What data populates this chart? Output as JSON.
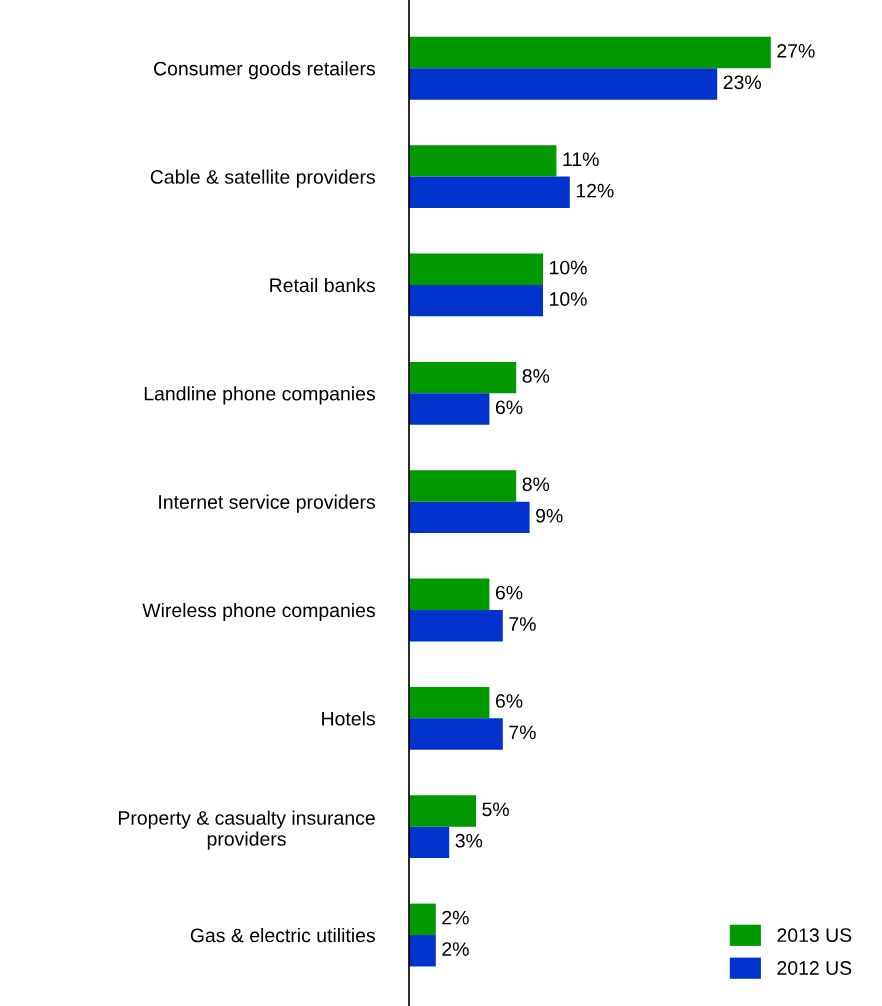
{
  "chart_data": {
    "type": "bar",
    "orientation": "horizontal",
    "categories": [
      "Consumer goods retailers",
      "Cable & satellite providers",
      "Retail banks",
      "Landline phone companies",
      "Internet service providers",
      "Wireless phone companies",
      "Hotels",
      "Property & casualty insurance\nproviders",
      "Gas & electric utilities"
    ],
    "series": [
      {
        "name": "2013 US",
        "color": "#009900",
        "values": [
          27,
          11,
          10,
          8,
          8,
          6,
          6,
          5,
          2
        ],
        "value_labels": [
          "27%",
          "11%",
          "10%",
          "8%",
          "8%",
          "6%",
          "6%",
          "5%",
          "2%"
        ]
      },
      {
        "name": "2012 US",
        "color": "#0033cc",
        "values": [
          23,
          12,
          10,
          6,
          9,
          7,
          7,
          3,
          2
        ],
        "value_labels": [
          "23%",
          "12%",
          "10%",
          "6%",
          "9%",
          "7%",
          "7%",
          "3%",
          "2%"
        ]
      }
    ],
    "legend": "bottom right"
  }
}
